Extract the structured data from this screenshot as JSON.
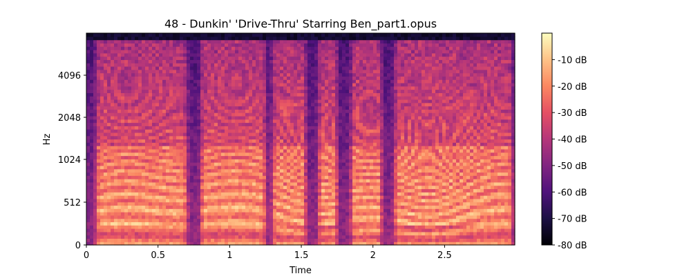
{
  "chart_data": {
    "type": "heatmap",
    "title": "48 - Dunkin' 'Drive-Thru' Starring Ben_part1.opus",
    "xlabel": "Time",
    "ylabel": "Hz",
    "xlim": [
      0,
      2.99
    ],
    "x_ticks": [
      0,
      0.5,
      1,
      1.5,
      2,
      2.5
    ],
    "x_tick_labels": [
      "0",
      "0.5",
      "1",
      "1.5",
      "2",
      "2.5"
    ],
    "y_scale": "log2 (mel-like, linear near 0)",
    "y_ticks": [
      0,
      512,
      1024,
      2048,
      4096
    ],
    "y_tick_labels": [
      "0",
      "512",
      "1024",
      "2048",
      "4096"
    ],
    "colormap": "magma",
    "colorbar": {
      "range_db": [
        -80,
        0
      ],
      "ticks": [
        -10,
        -20,
        -30,
        -40,
        -50,
        -60,
        -70,
        -80
      ],
      "tick_labels": [
        "-10 dB",
        "-20 dB",
        "-30 dB",
        "-40 dB",
        "-50 dB",
        "-60 dB",
        "-70 dB",
        "-80 dB"
      ]
    },
    "voiced_segments_s": [
      [
        0.05,
        0.72
      ],
      [
        0.78,
        1.27
      ],
      [
        1.28,
        1.55
      ],
      [
        1.6,
        1.77
      ],
      [
        1.83,
        2.08
      ],
      [
        2.13,
        2.99
      ]
    ],
    "energy_note": "strong harmonic bands 200-1500 Hz during voiced segments; top rows near -80 dB"
  },
  "colors": {
    "magma_stops": [
      "#000004",
      "#1c1044",
      "#4f127b",
      "#812581",
      "#b5367a",
      "#e55064",
      "#fb8761",
      "#fec287",
      "#fcfdbf"
    ]
  }
}
